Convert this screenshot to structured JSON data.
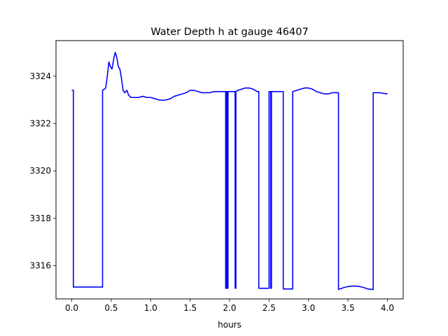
{
  "chart_data": {
    "type": "line",
    "title": "Water Depth h at gauge 46407",
    "xlabel": "hours",
    "ylabel": "",
    "xlim": [
      -0.2,
      4.2
    ],
    "ylim": [
      3314.6,
      3325.5
    ],
    "xticks": [
      0.0,
      0.5,
      1.0,
      1.5,
      2.0,
      2.5,
      3.0,
      3.5,
      4.0
    ],
    "xtick_labels": [
      "0.0",
      "0.5",
      "1.0",
      "1.5",
      "2.0",
      "2.5",
      "3.0",
      "3.5",
      "4.0"
    ],
    "yticks": [
      3316,
      3318,
      3320,
      3322,
      3324
    ],
    "ytick_labels": [
      "3316",
      "3318",
      "3320",
      "3322",
      "3324"
    ],
    "grid": false,
    "line_color": "#0000ff",
    "series": [
      {
        "x": [
          0.0,
          0.02,
          0.02,
          0.1,
          0.2,
          0.3,
          0.39,
          0.39,
          0.43,
          0.45,
          0.47,
          0.49,
          0.51,
          0.53,
          0.55,
          0.57,
          0.59,
          0.61,
          0.63,
          0.65,
          0.67,
          0.7,
          0.72,
          0.75,
          0.8,
          0.85,
          0.9,
          0.95,
          1.0,
          1.05,
          1.1,
          1.15,
          1.2,
          1.25,
          1.3,
          1.35,
          1.4,
          1.45,
          1.5,
          1.55,
          1.6,
          1.65,
          1.7,
          1.75,
          1.8,
          1.85,
          1.9,
          1.95,
          1.95,
          1.96,
          1.96,
          1.97,
          1.97,
          1.98,
          1.98,
          1.99,
          1.99,
          2.0,
          2.05,
          2.07,
          2.07,
          2.08,
          2.08,
          2.1,
          2.15,
          2.2,
          2.25,
          2.3,
          2.35,
          2.37,
          2.37,
          2.45,
          2.5,
          2.5,
          2.52,
          2.52,
          2.53,
          2.53,
          2.6,
          2.68,
          2.68,
          2.77,
          2.77,
          2.8,
          2.8,
          2.85,
          2.9,
          2.95,
          3.0,
          3.05,
          3.1,
          3.15,
          3.2,
          3.25,
          3.3,
          3.35,
          3.38,
          3.38,
          3.45,
          3.5,
          3.55,
          3.6,
          3.65,
          3.7,
          3.75,
          3.8,
          3.82,
          3.82,
          3.9,
          4.0
        ],
        "y": [
          3323.4,
          3323.4,
          3315.1,
          3315.1,
          3315.1,
          3315.1,
          3315.1,
          3323.4,
          3323.5,
          3324.0,
          3324.6,
          3324.4,
          3324.3,
          3324.7,
          3325.0,
          3324.8,
          3324.4,
          3324.3,
          3323.9,
          3323.4,
          3323.3,
          3323.4,
          3323.2,
          3323.1,
          3323.1,
          3323.1,
          3323.15,
          3323.1,
          3323.1,
          3323.05,
          3323.0,
          3322.98,
          3323.0,
          3323.05,
          3323.15,
          3323.2,
          3323.25,
          3323.3,
          3323.4,
          3323.4,
          3323.35,
          3323.3,
          3323.3,
          3323.3,
          3323.35,
          3323.35,
          3323.35,
          3323.35,
          3315.05,
          3315.05,
          3323.35,
          3323.35,
          3315.05,
          3315.05,
          3323.35,
          3323.35,
          3323.35,
          3323.35,
          3323.35,
          3323.35,
          3315.05,
          3315.05,
          3323.35,
          3323.4,
          3323.45,
          3323.5,
          3323.5,
          3323.45,
          3323.35,
          3323.35,
          3315.05,
          3315.05,
          3315.05,
          3323.35,
          3323.35,
          3315.05,
          3315.05,
          3323.35,
          3323.35,
          3323.35,
          3315.02,
          3315.02,
          3315.02,
          3315.02,
          3323.35,
          3323.4,
          3323.45,
          3323.5,
          3323.5,
          3323.45,
          3323.35,
          3323.3,
          3323.25,
          3323.25,
          3323.3,
          3323.3,
          3323.3,
          3315.0,
          3315.08,
          3315.12,
          3315.14,
          3315.14,
          3315.12,
          3315.08,
          3315.02,
          3315.0,
          3315.0,
          3323.3,
          3323.3,
          3323.25
        ]
      }
    ]
  }
}
